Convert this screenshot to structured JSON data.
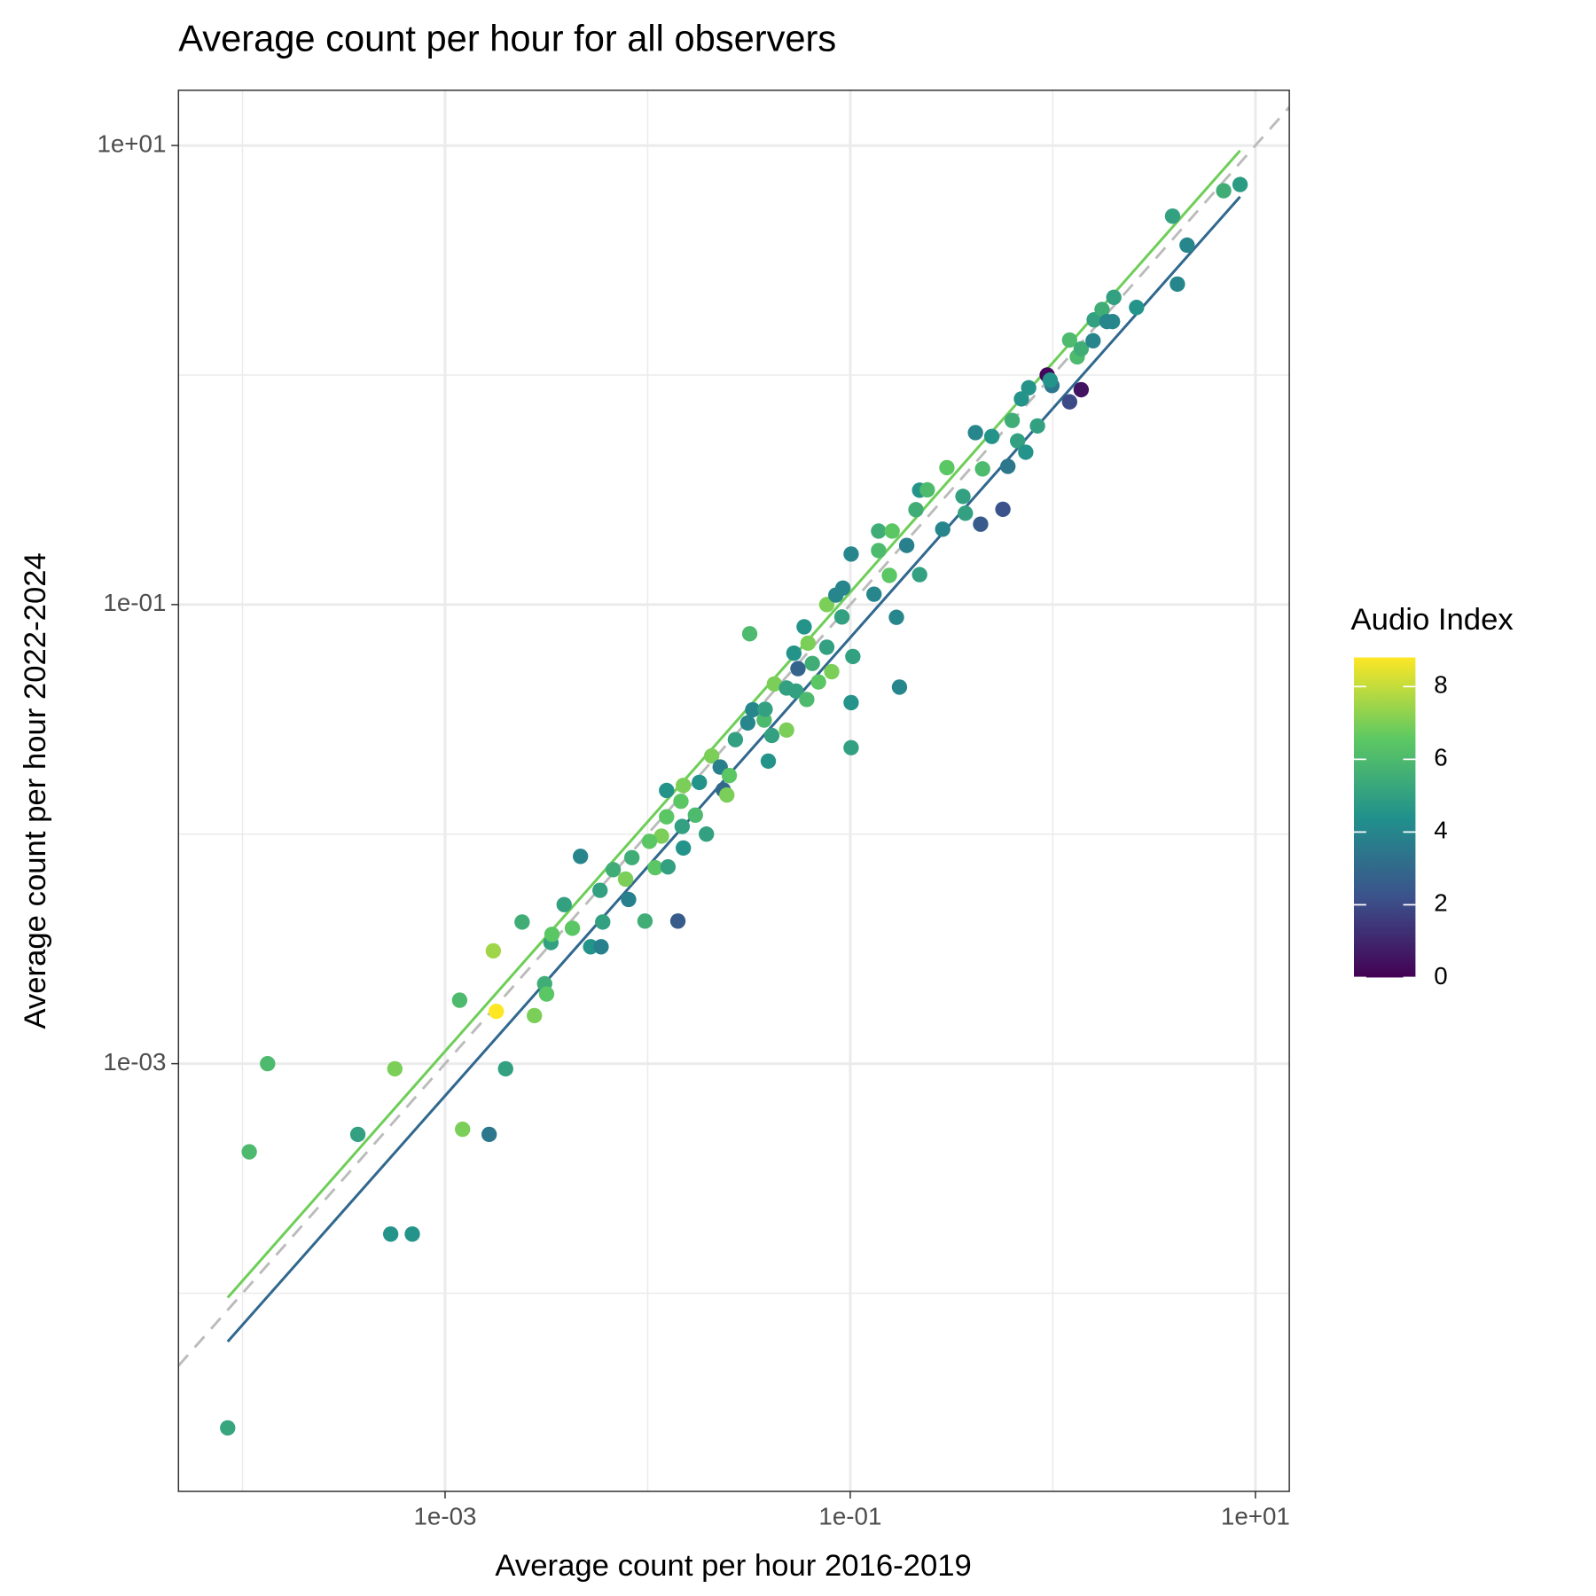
{
  "chart_data": {
    "type": "scatter",
    "title": "Average count per hour for all observers",
    "x_label": "Average count per hour 2016-2019",
    "y_label": "Average count per hour 2022-2024",
    "log_x": true,
    "log_y": true,
    "grid": true,
    "xlim": [
      4.83e-05,
      14.7
    ],
    "ylim": [
      1.37e-05,
      17.4
    ],
    "xticks": [
      {
        "value": 0.001,
        "label": "1e-03"
      },
      {
        "value": 0.1,
        "label": "1e-01"
      },
      {
        "value": 10,
        "label": "1e+01"
      }
    ],
    "yticks": [
      {
        "value": 0.001,
        "label": "1e-03"
      },
      {
        "value": 0.1,
        "label": "1e-01"
      },
      {
        "value": 10,
        "label": "1e+01"
      }
    ],
    "xminor": [
      0.0001,
      0.01,
      1
    ],
    "yminor": [
      0.0001,
      0.01,
      1
    ],
    "colormap": "viridis",
    "colorbar": {
      "title": "Audio Index",
      "lim": [
        0,
        8.8
      ],
      "ticks": [
        0,
        2,
        4,
        6,
        8
      ]
    },
    "series": [
      {
        "x": [
          8.45e-05,
          0.000108,
          0.000133,
          0.000371,
          0.000539,
          0.000689,
          0.000565,
          0.00118,
          0.00122,
          0.00165,
          0.00173,
          0.00179,
          0.00199,
          0.00276,
          0.0031,
          0.00317,
          0.0024,
          0.00333,
          0.00337,
          0.00387,
          0.00425,
          0.00466,
          0.00523,
          0.00589,
          0.006,
          0.00582,
          0.00676,
          0.00805,
          0.00778,
          0.00836,
          0.0097,
          0.0109,
          0.0126,
          0.0117,
          0.0102,
          0.0124,
          0.0141,
          0.015,
          0.0148,
          0.0124,
          0.0146,
          0.015,
          0.0172,
          0.018,
          0.0195,
          0.0207,
          0.0228,
          0.0236,
          0.0246,
          0.0253,
          0.0271,
          0.0319,
          0.0312,
          0.033,
          0.0376,
          0.038,
          0.0394,
          0.041,
          0.0422,
          0.0485,
          0.0485,
          0.0527,
          0.0552,
          0.054,
          0.0592,
          0.0619,
          0.061,
          0.065,
          0.0697,
          0.0766,
          0.081,
          0.0766,
          0.0849,
          0.091,
          0.092,
          0.101,
          0.101,
          0.101,
          0.103,
          0.131,
          0.138,
          0.138,
          0.161,
          0.156,
          0.169,
          0.175,
          0.19,
          0.211,
          0.22,
          0.22,
          0.24,
          0.286,
          0.3,
          0.36,
          0.37,
          0.415,
          0.44,
          0.45,
          0.5,
          0.567,
          0.6,
          0.67,
          0.63,
          0.735,
          0.7,
          0.76,
          0.84,
          0.938,
          0.99,
          0.97,
          1.21,
          1.38,
          1.21,
          1.32,
          1.38,
          1.58,
          1.6,
          1.75,
          1.85,
          2.0,
          1.97,
          2.59,
          4.12,
          3.9,
          4.6,
          6.97,
          8.4
        ],
        "values": [
          2.59e-05,
          0.000413,
          0.001,
          0.000492,
          0.000181,
          0.000181,
          0.00095,
          0.00189,
          0.000518,
          0.000492,
          0.0031,
          0.00169,
          0.00095,
          0.00162,
          0.00223,
          0.00201,
          0.00414,
          0.00337,
          0.00366,
          0.00493,
          0.00389,
          0.008,
          0.00323,
          0.00323,
          0.00414,
          0.00569,
          0.007,
          0.00519,
          0.00637,
          0.0079,
          0.00418,
          0.00714,
          0.0072,
          0.0098,
          0.0093,
          0.0119,
          0.00418,
          0.0087,
          0.0108,
          0.0155,
          0.0139,
          0.0163,
          0.0121,
          0.0168,
          0.01,
          0.0219,
          0.0196,
          0.0156,
          0.0148,
          0.018,
          0.0258,
          0.0746,
          0.0305,
          0.0348,
          0.0314,
          0.035,
          0.0208,
          0.0269,
          0.0451,
          0.0284,
          0.0433,
          0.0614,
          0.0526,
          0.042,
          0.08,
          0.0679,
          0.0386,
          0.0554,
          0.046,
          0.0652,
          0.051,
          0.1,
          0.11,
          0.0883,
          0.118,
          0.166,
          0.0374,
          0.0238,
          0.0594,
          0.111,
          0.172,
          0.209,
          0.209,
          0.134,
          0.088,
          0.0437,
          0.181,
          0.259,
          0.135,
          0.315,
          0.316,
          0.213,
          0.395,
          0.296,
          0.25,
          0.561,
          0.224,
          0.39,
          0.54,
          0.26,
          0.4,
          0.516,
          0.634,
          0.461,
          0.787,
          0.88,
          0.6,
          1.0,
          0.9,
          0.95,
          0.764,
          0.863,
          1.42,
          1.2,
          1.3,
          1.41,
          1.74,
          1.93,
          1.71,
          2.18,
          1.71,
          1.97,
          2.49,
          4.92,
          3.68,
          6.35,
          6.76
        ],
        "audio_index": [
          5.2,
          6.0,
          6.0,
          5.0,
          4.5,
          4.5,
          7.0,
          6.0,
          7.0,
          3.5,
          7.5,
          8.8,
          5.0,
          7.0,
          5.5,
          6.5,
          5.5,
          5.0,
          6.5,
          5.0,
          6.5,
          4.0,
          4.5,
          3.8,
          5.0,
          5.0,
          5.5,
          3.8,
          7.0,
          5.5,
          5.5,
          6.5,
          5.0,
          7.0,
          6.5,
          6.5,
          2.5,
          4.5,
          5.0,
          4.5,
          6.5,
          7.0,
          6.0,
          4.5,
          5.0,
          7.0,
          3.8,
          3.0,
          7.0,
          6.5,
          5.0,
          6.0,
          4.0,
          4.0,
          6.0,
          5.0,
          4.5,
          5.0,
          7.0,
          7.0,
          5.0,
          4.5,
          2.8,
          5.0,
          4.5,
          7.0,
          6.0,
          5.5,
          6.5,
          5.0,
          7.0,
          7.0,
          4.0,
          5.0,
          4.0,
          4.0,
          4.5,
          5.0,
          5.0,
          4.0,
          6.0,
          5.5,
          6.5,
          6.5,
          4.0,
          4.0,
          3.8,
          5.5,
          5.0,
          4.5,
          6.0,
          4.0,
          6.5,
          5.0,
          5.0,
          4.0,
          2.5,
          6.0,
          4.5,
          2.2,
          3.5,
          5.0,
          5.5,
          4.5,
          4.5,
          4.5,
          5.0,
          0.2,
          3.5,
          4.5,
          2.0,
          0.5,
          6.0,
          6.0,
          5.5,
          4.0,
          5.0,
          5.5,
          4.0,
          5.0,
          4.0,
          4.5,
          4.0,
          5.0,
          4.0,
          5.5,
          4.8
        ]
      }
    ],
    "lines": [
      {
        "color": "#bbbbbb",
        "dash": true,
        "x": [
          4.83e-05,
          14.7
        ],
        "values": [
          4.83e-05,
          14.7
        ]
      },
      {
        "color": "#6ece58",
        "dash": false,
        "x": [
          8.45e-05,
          8.4
        ],
        "values": [
          9.57e-05,
          9.5
        ]
      },
      {
        "color": "#31688e",
        "dash": false,
        "x": [
          8.45e-05,
          8.4
        ],
        "values": [
          6.15e-05,
          5.98
        ]
      }
    ]
  }
}
